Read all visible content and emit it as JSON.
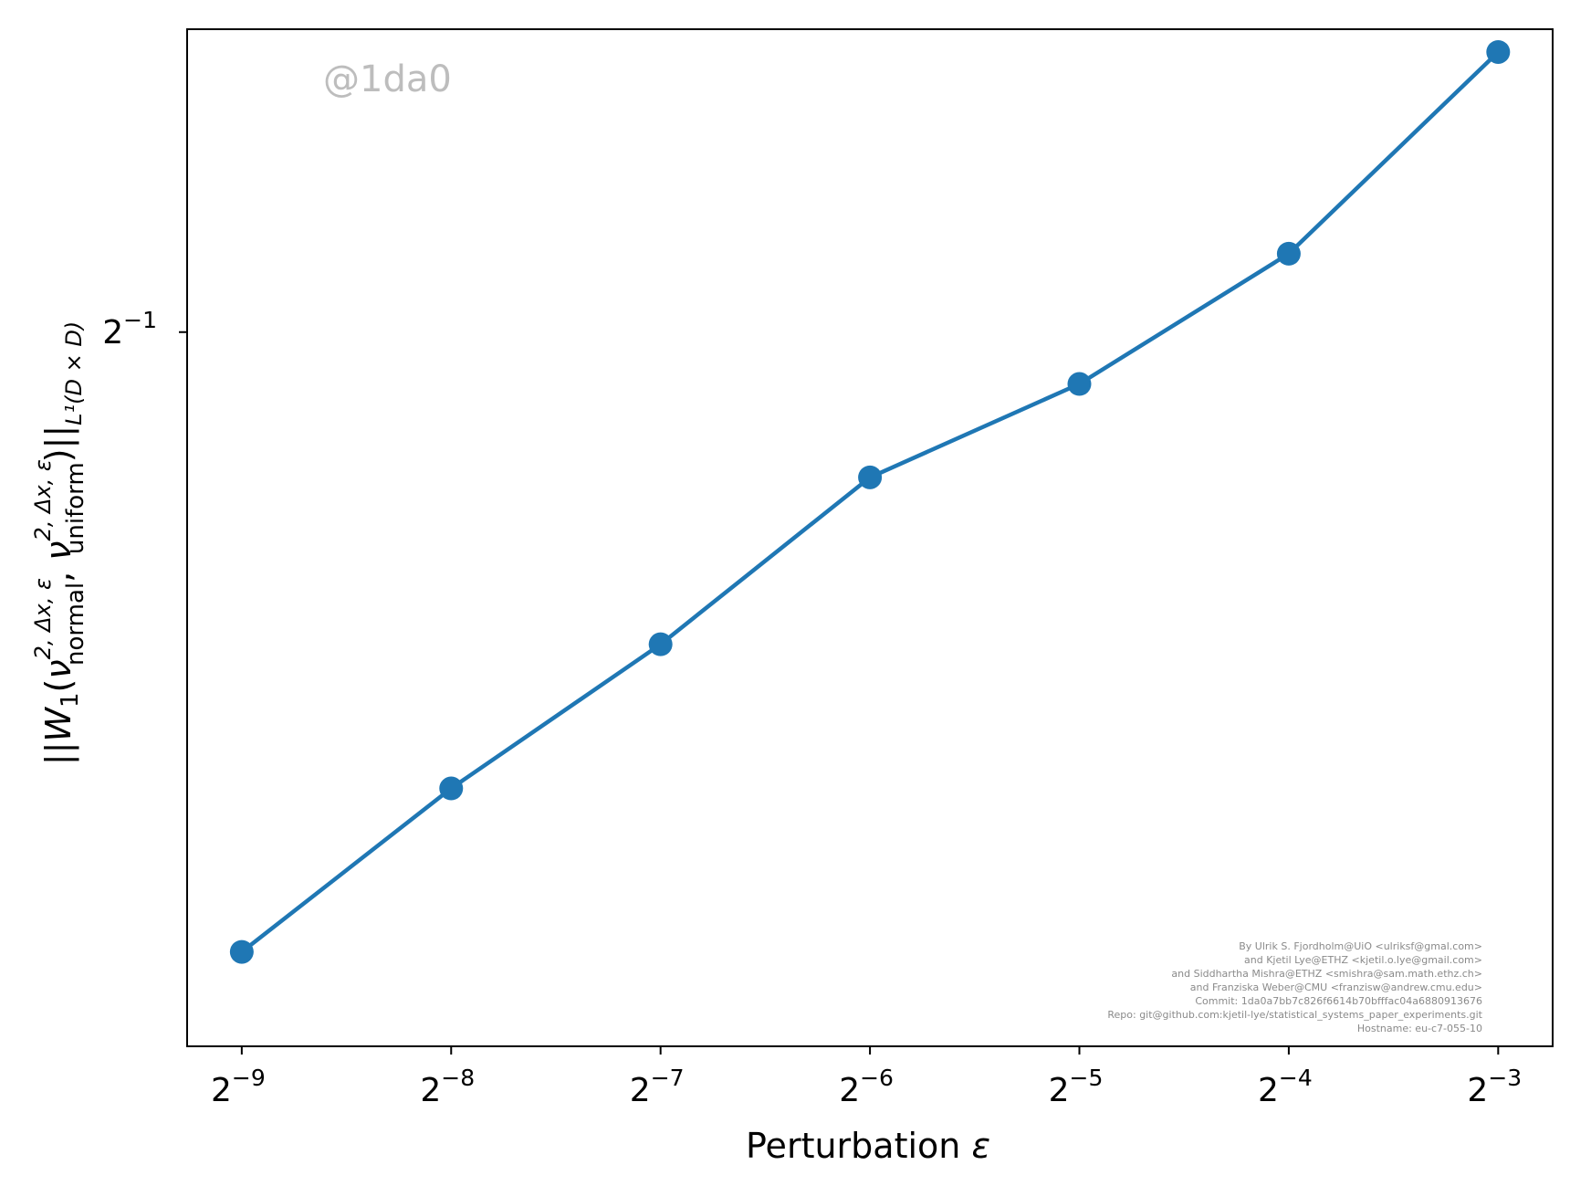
{
  "chart_data": {
    "type": "line",
    "xscale": "log2",
    "yscale": "log2",
    "x": [
      0.001953125,
      0.00390625,
      0.0078125,
      0.015625,
      0.03125,
      0.0625,
      0.125
    ],
    "series": [
      {
        "values": [
          0.21,
          0.264,
          0.323,
          0.408,
          0.465,
          0.558,
          0.74
        ],
        "color": "#1f77b4"
      }
    ],
    "xlim": [
      0.00163,
      0.1497
    ],
    "ylim": [
      0.184,
      0.764
    ],
    "x_ticks": [
      {
        "value": 0.001953125,
        "base": "2",
        "exp": "−9"
      },
      {
        "value": 0.00390625,
        "base": "2",
        "exp": "−8"
      },
      {
        "value": 0.0078125,
        "base": "2",
        "exp": "−7"
      },
      {
        "value": 0.015625,
        "base": "2",
        "exp": "−6"
      },
      {
        "value": 0.03125,
        "base": "2",
        "exp": "−5"
      },
      {
        "value": 0.0625,
        "base": "2",
        "exp": "−4"
      },
      {
        "value": 0.125,
        "base": "2",
        "exp": "−3"
      }
    ],
    "y_ticks": [
      {
        "value": 0.5,
        "base": "2",
        "exp": "−1"
      }
    ],
    "xlabel": {
      "text": "Perturbation ",
      "symbol": "ε"
    },
    "ylabel": {
      "open": "||",
      "W": "W",
      "W_sub": "1",
      "paren_open": "(",
      "nu": "ν",
      "sup1": "2, Δx, ε",
      "sub1": "normal",
      "comma": ", ",
      "sup2": "2, Δx, ε",
      "sub2": "uniform",
      "paren_close": ")",
      "close": "||",
      "norm_sub": "L¹(D × D)"
    },
    "grid": false,
    "legend": "none"
  },
  "watermark": "@1da0",
  "credits": [
    "By Ulrik S. Fjordholm@UiO <ulriksf@gmal.com>",
    "and Kjetil Lye@ETHZ <kjetil.o.lye@gmail.com>",
    "and Siddhartha Mishra@ETHZ <smishra@sam.math.ethz.ch>",
    "and Franziska Weber@CMU <franzisw@andrew.cmu.edu>",
    "Commit: 1da0a7bb7c826f6614b70bfffac04a6880913676",
    "Repo: git@github.com:kjetil-lye/statistical_systems_paper_experiments.git",
    "Hostname: eu-c7-055-10"
  ]
}
